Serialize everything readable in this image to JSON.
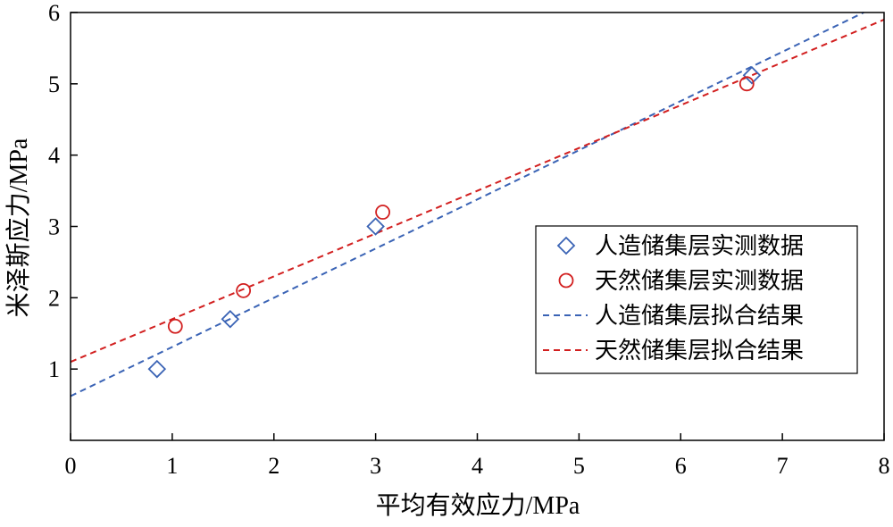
{
  "chart_data": {
    "type": "scatter",
    "xlabel": "平均有效应力/MPa",
    "ylabel": "米泽斯应力/MPa",
    "xlim": [
      0,
      8
    ],
    "ylim": [
      0,
      6
    ],
    "x_ticks": [
      "0",
      "1",
      "2",
      "3",
      "4",
      "5",
      "6",
      "7",
      "8"
    ],
    "y_ticks": [
      "1",
      "2",
      "3",
      "4",
      "5",
      "6"
    ],
    "grid": false,
    "legend_position": "right",
    "series": [
      {
        "name": "人造储集层实测数据",
        "kind": "points",
        "marker": "diamond",
        "color": "#3a63b5",
        "points": [
          [
            0.85,
            1.0
          ],
          [
            1.57,
            1.7
          ],
          [
            3.0,
            3.0
          ],
          [
            6.7,
            5.12
          ]
        ]
      },
      {
        "name": "天然储集层实测数据",
        "kind": "points",
        "marker": "circle",
        "color": "#d21f1f",
        "points": [
          [
            1.03,
            1.6
          ],
          [
            1.7,
            2.1
          ],
          [
            3.07,
            3.2
          ],
          [
            6.65,
            5.0
          ]
        ]
      },
      {
        "name": "人造储集层拟合结果",
        "kind": "dashed-line",
        "color": "#3a63b5",
        "points": [
          [
            0,
            0.62
          ],
          [
            7.8,
            6.0
          ]
        ]
      },
      {
        "name": "天然储集层拟合结果",
        "kind": "dashed-line",
        "color": "#d21f1f",
        "points": [
          [
            0,
            1.1
          ],
          [
            8.0,
            5.9
          ]
        ]
      }
    ]
  }
}
